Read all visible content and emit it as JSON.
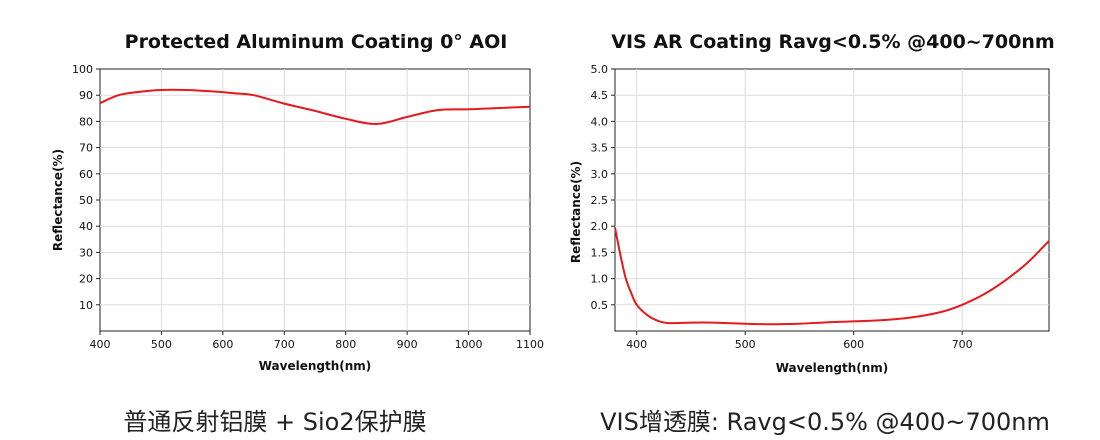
{
  "chart_data": [
    {
      "type": "line",
      "title": "Protected Aluminum Coating 0° AOI",
      "xlabel": "Wavelength(nm)",
      "ylabel": "Reflectance(%)",
      "xlim": [
        400,
        1100
      ],
      "ylim": [
        0,
        100
      ],
      "xticks": [
        400,
        500,
        600,
        700,
        800,
        900,
        1000,
        1100
      ],
      "yticks": [
        10,
        20,
        30,
        40,
        50,
        60,
        70,
        80,
        90,
        100
      ],
      "grid": true,
      "line_color": "#e41a1c",
      "series": [
        {
          "x": [
            400,
            430,
            460,
            500,
            540,
            580,
            620,
            650,
            700,
            750,
            800,
            850,
            900,
            950,
            1000,
            1050,
            1100
          ],
          "y": [
            87,
            90,
            91.2,
            92,
            92,
            91.5,
            90.7,
            90,
            86.8,
            84,
            81,
            79,
            81.7,
            84.3,
            84.6,
            85.1,
            85.6
          ]
        }
      ],
      "caption": "普通反射铝膜 + Sio2保护膜"
    },
    {
      "type": "line",
      "title": "VIS AR Coating Ravg<0.5% @400~700nm",
      "xlabel": "Wavelength(nm)",
      "ylabel": "Reflectance(%)",
      "xlim": [
        380,
        780
      ],
      "ylim": [
        0,
        5
      ],
      "xticks": [
        400,
        500,
        600,
        700
      ],
      "yticks": [
        0.5,
        1.0,
        1.5,
        2.0,
        2.5,
        3.0,
        3.5,
        4.0,
        4.5,
        5.0
      ],
      "grid": true,
      "line_color": "#e41a1c",
      "series": [
        {
          "x": [
            380,
            385,
            390,
            395,
            400,
            410,
            420,
            430,
            450,
            470,
            500,
            520,
            550,
            580,
            620,
            650,
            680,
            700,
            720,
            740,
            760,
            780
          ],
          "y": [
            1.97,
            1.45,
            1.0,
            0.72,
            0.5,
            0.3,
            0.19,
            0.15,
            0.16,
            0.16,
            0.14,
            0.13,
            0.14,
            0.17,
            0.2,
            0.25,
            0.36,
            0.5,
            0.7,
            0.97,
            1.3,
            1.72
          ]
        }
      ],
      "caption": "VIS增透膜: Ravg<0.5% @400~700nm"
    }
  ]
}
